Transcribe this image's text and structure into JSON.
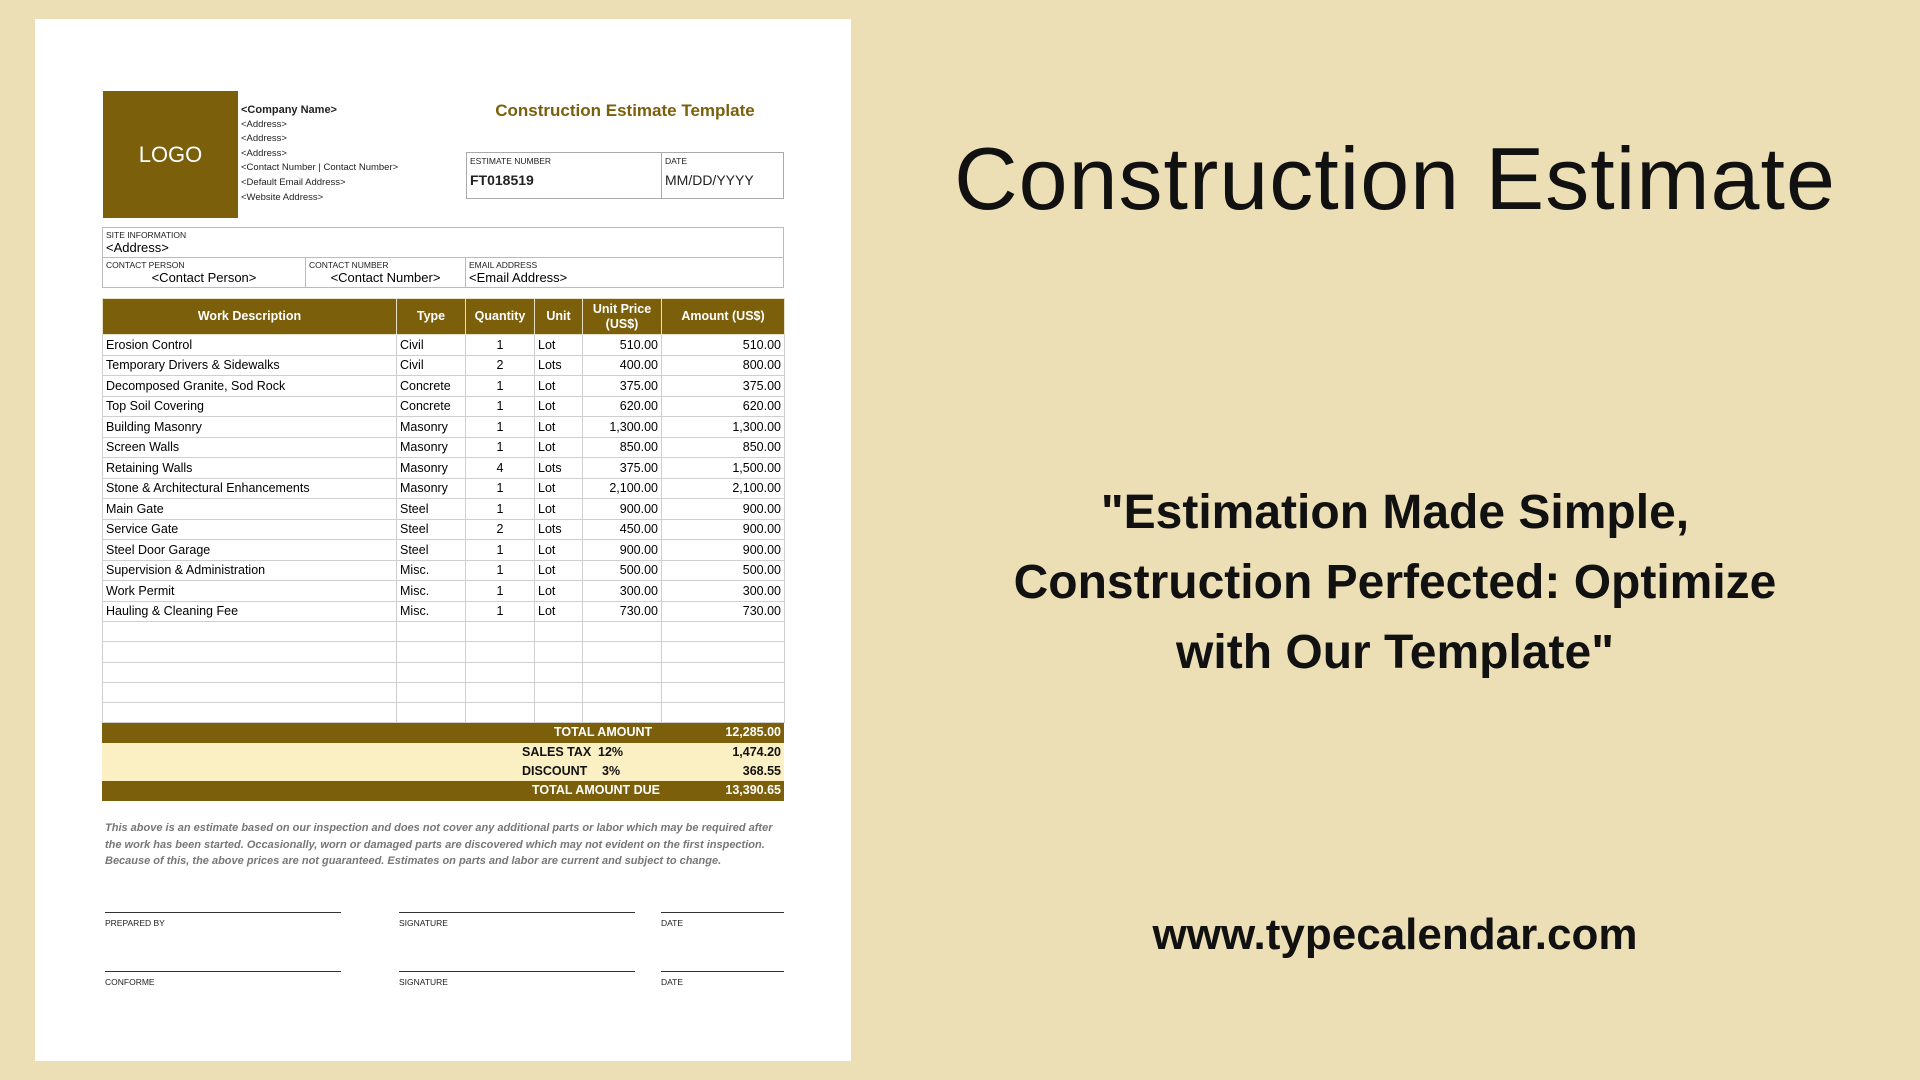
{
  "template": {
    "logo": "LOGO",
    "company": [
      "<Company Name>",
      "<Address>",
      "<Address>",
      "<Address>",
      "<Contact Number | Contact Number>",
      "<Default Email Address>",
      "<Website Address>"
    ],
    "title": "Construction Estimate Template",
    "estimate_number_label": "ESTIMATE NUMBER",
    "estimate_number": "FT018519",
    "date_label": "DATE",
    "date": "MM/DD/YYYY",
    "site_label": "SITE INFORMATION",
    "site_value": "<Address>",
    "contact_person_label": "CONTACT PERSON",
    "contact_person": "<Contact Person>",
    "contact_number_label": "CONTACT NUMBER",
    "contact_number": "<Contact Number>",
    "email_label": "EMAIL ADDRESS",
    "email": "<Email Address>",
    "columns": [
      "Work Description",
      "Type",
      "Quantity",
      "Unit",
      "Unit Price (US$)",
      "Amount (US$)"
    ],
    "rows": [
      [
        "Erosion   Control",
        "Civil",
        "1",
        "Lot",
        "510.00",
        "510.00"
      ],
      [
        "Temporary Drivers & Sidewalks",
        "Civil",
        "2",
        "Lots",
        "400.00",
        "800.00"
      ],
      [
        "Decomposed Granite, Sod Rock",
        "Concrete",
        "1",
        "Lot",
        "375.00",
        "375.00"
      ],
      [
        "Top Soil Covering",
        "Concrete",
        "1",
        "Lot",
        "620.00",
        "620.00"
      ],
      [
        "Building Masonry",
        "Masonry",
        "1",
        "Lot",
        "1,300.00",
        "1,300.00"
      ],
      [
        "Screen Walls",
        "Masonry",
        "1",
        "Lot",
        "850.00",
        "850.00"
      ],
      [
        "Retaining Walls",
        "Masonry",
        "4",
        "Lots",
        "375.00",
        "1,500.00"
      ],
      [
        "Stone & Architectural Enhancements",
        "Masonry",
        "1",
        "Lot",
        "2,100.00",
        "2,100.00"
      ],
      [
        "Main Gate",
        "Steel",
        "1",
        "Lot",
        "900.00",
        "900.00"
      ],
      [
        "Service Gate",
        "Steel",
        "2",
        "Lots",
        "450.00",
        "900.00"
      ],
      [
        "Steel Door Garage",
        "Steel",
        "1",
        "Lot",
        "900.00",
        "900.00"
      ],
      [
        "Supervision & Administration",
        "Misc.",
        "1",
        "Lot",
        "500.00",
        "500.00"
      ],
      [
        "Work Permit",
        "Misc.",
        "1",
        "Lot",
        "300.00",
        "300.00"
      ],
      [
        "Hauling & Cleaning Fee",
        "Misc.",
        "1",
        "Lot",
        "730.00",
        "730.00"
      ]
    ],
    "total_label": "TOTAL AMOUNT",
    "total": "12,285.00",
    "tax_label": "SALES TAX",
    "tax_rate": "12%",
    "tax": "1,474.20",
    "discount_label": "DISCOUNT",
    "discount_rate": "3%",
    "discount": "368.55",
    "due_label": "TOTAL AMOUNT DUE",
    "due": "13,390.65",
    "note": "This above is an estimate based on our inspection and does not cover any additional parts or labor which may be required after the work has been started. Occasionally, worn or damaged parts are discovered which may not evident on the first inspection. Because of this, the above prices are not guaranteed. Estimates on parts and labor are current and subject to change.",
    "prepared_by": "PREPARED BY",
    "signature": "SIGNATURE",
    "date_sig": "DATE",
    "conforme": "CONFORME"
  },
  "headline": "Construction Estimate",
  "quote": "\"Estimation Made Simple, Construction Perfected: Optimize with Our Template\"",
  "website": "www.typecalendar.com",
  "colors": {
    "brand": "#7b5f0b",
    "background": "#ecdfb6",
    "highlight": "#fbefc4"
  }
}
